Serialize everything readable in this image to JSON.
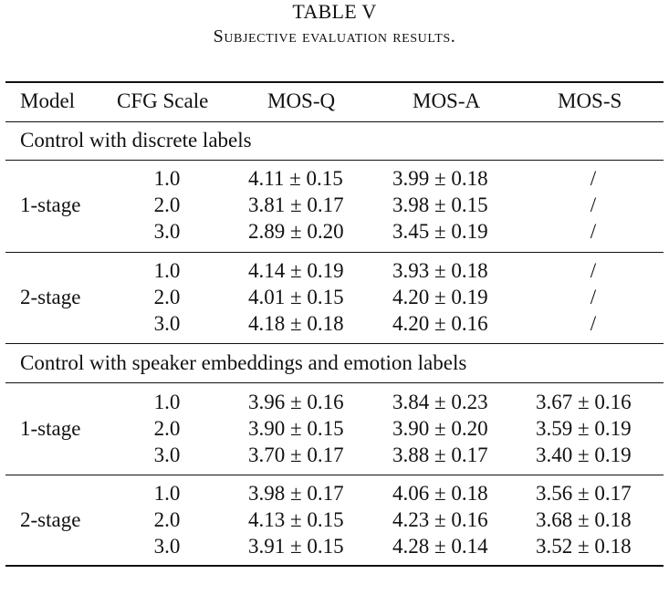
{
  "caption": {
    "label": "TABLE V",
    "title": "Subjective evaluation results."
  },
  "headers": {
    "model": "Model",
    "cfg": "CFG Scale",
    "mos_q": "MOS-Q",
    "mos_a": "MOS-A",
    "mos_s": "MOS-S"
  },
  "sections": [
    {
      "label": "Control with discrete labels",
      "groups": [
        {
          "model": "1-stage",
          "rows": [
            {
              "cfg": "1.0",
              "q": "4.11 ± 0.15",
              "a": "3.99 ± 0.18",
              "s": "/"
            },
            {
              "cfg": "2.0",
              "q": "3.81 ± 0.17",
              "a": "3.98 ± 0.15",
              "s": "/"
            },
            {
              "cfg": "3.0",
              "q": "2.89 ± 0.20",
              "a": "3.45 ± 0.19",
              "s": "/"
            }
          ]
        },
        {
          "model": "2-stage",
          "rows": [
            {
              "cfg": "1.0",
              "q": "4.14 ± 0.19",
              "a": "3.93 ± 0.18",
              "s": "/"
            },
            {
              "cfg": "2.0",
              "q": "4.01 ± 0.15",
              "a": "4.20 ± 0.19",
              "s": "/"
            },
            {
              "cfg": "3.0",
              "q": "4.18 ± 0.18",
              "a": "4.20 ± 0.16",
              "s": "/"
            }
          ]
        }
      ]
    },
    {
      "label": "Control with speaker embeddings and emotion labels",
      "groups": [
        {
          "model": "1-stage",
          "rows": [
            {
              "cfg": "1.0",
              "q": "3.96 ± 0.16",
              "a": "3.84 ± 0.23",
              "s": "3.67 ± 0.16"
            },
            {
              "cfg": "2.0",
              "q": "3.90 ± 0.15",
              "a": "3.90 ± 0.20",
              "s": "3.59 ± 0.19"
            },
            {
              "cfg": "3.0",
              "q": "3.70 ± 0.17",
              "a": "3.88 ± 0.17",
              "s": "3.40 ± 0.19"
            }
          ]
        },
        {
          "model": "2-stage",
          "rows": [
            {
              "cfg": "1.0",
              "q": "3.98 ± 0.17",
              "a": "4.06 ± 0.18",
              "s": "3.56 ± 0.17"
            },
            {
              "cfg": "2.0",
              "q": "4.13 ± 0.15",
              "a": "4.23 ± 0.16",
              "s": "3.68 ± 0.18"
            },
            {
              "cfg": "3.0",
              "q": "3.91 ± 0.15",
              "a": "4.28 ± 0.14",
              "s": "3.52 ± 0.18"
            }
          ]
        }
      ]
    }
  ]
}
